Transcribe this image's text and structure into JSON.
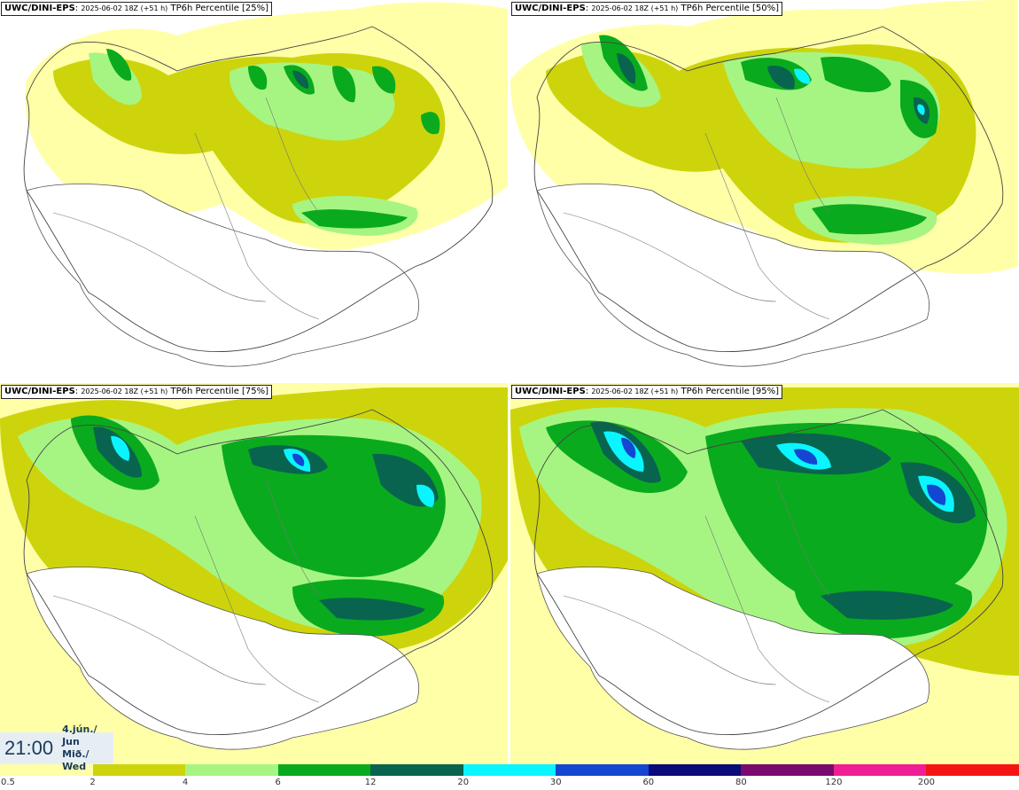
{
  "panels": [
    {
      "model": "UWC/DINI-EPS",
      "run": "2025-06-02 18Z (+51 h)",
      "field": "TP6h Percentile [25%]"
    },
    {
      "model": "UWC/DINI-EPS",
      "run": "2025-06-02 18Z (+51 h)",
      "field": "TP6h Percentile [50%]"
    },
    {
      "model": "UWC/DINI-EPS",
      "run": "2025-06-02 18Z (+51 h)",
      "field": "TP6h Percentile [75%]"
    },
    {
      "model": "UWC/DINI-EPS",
      "run": "2025-06-02 18Z (+51 h)",
      "field": "TP6h Percentile [95%]"
    }
  ],
  "valid_time": {
    "time": "21:00",
    "date_is": "4.jún./ Jun",
    "day": "Mið./ Wed"
  },
  "legend": {
    "colors": [
      "#ffffa8",
      "#cdd40c",
      "#a6f582",
      "#0aaa1e",
      "#08644e",
      "#0af5ff",
      "#1446d2",
      "#0a0a78",
      "#7a0a6e",
      "#f01e96",
      "#f51414"
    ],
    "labels": [
      "0.5",
      "2",
      "4",
      "6",
      "12",
      "20",
      "30",
      "60",
      "80",
      "120",
      "200"
    ]
  }
}
